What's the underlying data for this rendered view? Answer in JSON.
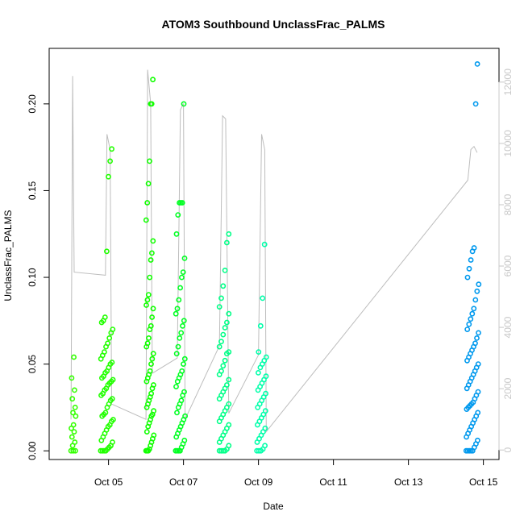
{
  "chart_data": {
    "type": "scatter",
    "title": "ATOM3 Southbound UnclassFrac_PALMS",
    "xlabel": "Date",
    "ylabel": "UnclassFrac_PALMS",
    "xlim": [
      "2017-10-03T10:00",
      "2017-10-15T10:00"
    ],
    "ylim": [
      -0.005,
      0.232
    ],
    "y2lim": [
      -310,
      13100
    ],
    "x_ticks": [
      {
        "label": "Oct 05",
        "date": "2017-10-05"
      },
      {
        "label": "Oct 07",
        "date": "2017-10-07"
      },
      {
        "label": "Oct 09",
        "date": "2017-10-09"
      },
      {
        "label": "Oct 11",
        "date": "2017-10-11"
      },
      {
        "label": "Oct 13",
        "date": "2017-10-13"
      },
      {
        "label": "Oct 15",
        "date": "2017-10-15"
      }
    ],
    "y_ticks": [
      {
        "label": "0.00",
        "value": 0.0
      },
      {
        "label": "0.05",
        "value": 0.05
      },
      {
        "label": "0.10",
        "value": 0.1
      },
      {
        "label": "0.15",
        "value": 0.15
      },
      {
        "label": "0.20",
        "value": 0.2
      }
    ],
    "y2_ticks": [
      {
        "label": "0",
        "value": 0
      },
      {
        "label": "2000",
        "value": 2000
      },
      {
        "label": "4000",
        "value": 4000
      },
      {
        "label": "6000",
        "value": 6000
      },
      {
        "label": "8000",
        "value": 8000
      },
      {
        "label": "10000",
        "value": 10000
      },
      {
        "label": "12000",
        "value": 12000
      }
    ],
    "grid": false,
    "legend": "none",
    "flights": [
      {
        "start": "2017-10-04T00:00",
        "end": "2017-10-04T03:00",
        "color": "#33ff00",
        "values": [
          0.0,
          0.0,
          0.0,
          0.003,
          0.005,
          0.008,
          0.011,
          0.013,
          0.015,
          0.02,
          0.022,
          0.025,
          0.03,
          0.035,
          0.042,
          0.054
        ]
      },
      {
        "start": "2017-10-04T19:00",
        "end": "2017-10-05T03:00",
        "color": "#22ff00",
        "values": [
          0.0,
          0.0,
          0.0,
          0.0,
          0.001,
          0.002,
          0.003,
          0.005,
          0.006,
          0.008,
          0.01,
          0.012,
          0.014,
          0.015,
          0.017,
          0.018,
          0.02,
          0.021,
          0.022,
          0.025,
          0.027,
          0.029,
          0.03,
          0.032,
          0.033,
          0.035,
          0.036,
          0.038,
          0.039,
          0.04,
          0.041,
          0.042,
          0.043,
          0.045,
          0.046,
          0.048,
          0.05,
          0.051,
          0.053,
          0.055,
          0.057,
          0.06,
          0.062,
          0.065,
          0.068,
          0.07,
          0.074,
          0.075,
          0.077,
          0.115,
          0.158,
          0.167,
          0.174
        ]
      },
      {
        "start": "2017-10-06T00:00",
        "end": "2017-10-06T05:00",
        "color": "#11ff00",
        "values": [
          0.0,
          0.0,
          0.0,
          0.001,
          0.003,
          0.005,
          0.007,
          0.009,
          0.011,
          0.014,
          0.016,
          0.018,
          0.02,
          0.021,
          0.023,
          0.025,
          0.027,
          0.029,
          0.031,
          0.033,
          0.036,
          0.038,
          0.04,
          0.042,
          0.044,
          0.046,
          0.05,
          0.053,
          0.056,
          0.06,
          0.062,
          0.065,
          0.07,
          0.072,
          0.077,
          0.082,
          0.084,
          0.087,
          0.09,
          0.1,
          0.11,
          0.114,
          0.121,
          0.133,
          0.143,
          0.154,
          0.167,
          0.2,
          0.2,
          0.214
        ]
      },
      {
        "start": "2017-10-06T19:00",
        "end": "2017-10-07T01:00",
        "color": "#00ff22",
        "values": [
          0.0,
          0.0,
          0.0,
          0.0,
          0.002,
          0.004,
          0.006,
          0.008,
          0.01,
          0.012,
          0.014,
          0.016,
          0.018,
          0.02,
          0.022,
          0.025,
          0.027,
          0.029,
          0.032,
          0.034,
          0.037,
          0.04,
          0.042,
          0.044,
          0.046,
          0.05,
          0.053,
          0.056,
          0.06,
          0.065,
          0.068,
          0.072,
          0.075,
          0.079,
          0.082,
          0.087,
          0.094,
          0.1,
          0.103,
          0.111,
          0.125,
          0.136,
          0.143,
          0.143,
          0.143,
          0.2
        ]
      },
      {
        "start": "2017-10-07T23:00",
        "end": "2017-10-08T06:00",
        "color": "#00ff88",
        "values": [
          0.0,
          0.0,
          0.0,
          0.0,
          0.001,
          0.003,
          0.005,
          0.007,
          0.009,
          0.011,
          0.013,
          0.015,
          0.017,
          0.019,
          0.021,
          0.023,
          0.025,
          0.027,
          0.03,
          0.032,
          0.034,
          0.036,
          0.038,
          0.041,
          0.044,
          0.046,
          0.049,
          0.052,
          0.056,
          0.057,
          0.06,
          0.063,
          0.067,
          0.071,
          0.074,
          0.079,
          0.083,
          0.088,
          0.095,
          0.104,
          0.12,
          0.125
        ]
      },
      {
        "start": "2017-10-08T23:00",
        "end": "2017-10-09T05:00",
        "color": "#00ffaa",
        "values": [
          0.0,
          0.0,
          0.0,
          0.001,
          0.003,
          0.005,
          0.007,
          0.009,
          0.011,
          0.013,
          0.015,
          0.017,
          0.019,
          0.021,
          0.023,
          0.025,
          0.027,
          0.029,
          0.031,
          0.033,
          0.035,
          0.037,
          0.039,
          0.041,
          0.043,
          0.045,
          0.048,
          0.05,
          0.052,
          0.054,
          0.057,
          0.072,
          0.088,
          0.119
        ]
      },
      {
        "start": "2017-10-14T13:00",
        "end": "2017-10-14T21:00",
        "color": "#0099ee",
        "values": [
          0.0,
          0.0,
          0.0,
          0.0,
          0.0,
          0.002,
          0.004,
          0.006,
          0.008,
          0.01,
          0.012,
          0.014,
          0.016,
          0.018,
          0.02,
          0.022,
          0.024,
          0.025,
          0.026,
          0.027,
          0.028,
          0.03,
          0.032,
          0.034,
          0.036,
          0.038,
          0.04,
          0.042,
          0.044,
          0.046,
          0.048,
          0.05,
          0.052,
          0.054,
          0.056,
          0.058,
          0.06,
          0.062,
          0.065,
          0.068,
          0.07,
          0.073,
          0.076,
          0.079,
          0.082,
          0.087,
          0.092,
          0.096,
          0.1,
          0.105,
          0.11,
          0.115,
          0.117,
          0.2,
          0.223
        ]
      }
    ],
    "altitude_series": [
      {
        "date": "2017-10-04T00:00",
        "value": 1000
      },
      {
        "date": "2017-10-04T01:00",
        "value": 12200
      },
      {
        "date": "2017-10-04T02:00",
        "value": 5800
      },
      {
        "date": "2017-10-04T22:00",
        "value": 5700
      },
      {
        "date": "2017-10-04T23:00",
        "value": 10300
      },
      {
        "date": "2017-10-05T01:00",
        "value": 9800
      },
      {
        "date": "2017-10-05T02:00",
        "value": 1500
      },
      {
        "date": "2017-10-06T00:00",
        "value": 1000
      },
      {
        "date": "2017-10-06T01:00",
        "value": 12400
      },
      {
        "date": "2017-10-06T03:00",
        "value": 11300
      },
      {
        "date": "2017-10-06T04:00",
        "value": 2500
      },
      {
        "date": "2017-10-06T20:00",
        "value": 3000
      },
      {
        "date": "2017-10-06T22:00",
        "value": 11100
      },
      {
        "date": "2017-10-07T00:00",
        "value": 11300
      },
      {
        "date": "2017-10-07T01:00",
        "value": 1000
      },
      {
        "date": "2017-10-07T23:00",
        "value": 3400
      },
      {
        "date": "2017-10-08T01:00",
        "value": 10900
      },
      {
        "date": "2017-10-08T03:00",
        "value": 10800
      },
      {
        "date": "2017-10-08T05:00",
        "value": 1200
      },
      {
        "date": "2017-10-09T00:00",
        "value": 3100
      },
      {
        "date": "2017-10-09T02:00",
        "value": 10300
      },
      {
        "date": "2017-10-09T04:00",
        "value": 9800
      },
      {
        "date": "2017-10-09T05:00",
        "value": 600
      },
      {
        "date": "2017-10-14T14:00",
        "value": 8800
      },
      {
        "date": "2017-10-14T16:00",
        "value": 9800
      },
      {
        "date": "2017-10-14T18:00",
        "value": 9900
      },
      {
        "date": "2017-10-14T20:00",
        "value": 9700
      }
    ]
  }
}
